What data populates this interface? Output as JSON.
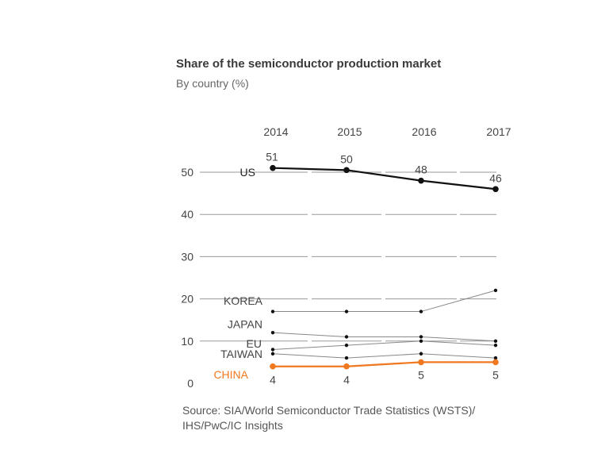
{
  "title": "Share of the semiconductor production market",
  "subtitle": "By country (%)",
  "source": "Source: SIA/World Semiconductor Trade Statistics (WSTS)/ IHS/PwC/IC Insights",
  "colors": {
    "us": "#111111",
    "china": "#f07820",
    "other": "#888888",
    "grid": "#9a9a9a",
    "text": "#444444"
  },
  "chart_data": {
    "type": "line",
    "x": [
      "2014",
      "2015",
      "2016",
      "2017"
    ],
    "ylim": [
      0,
      50
    ],
    "yticks": [
      "0",
      "10",
      "20",
      "30",
      "40",
      "50"
    ],
    "series": [
      {
        "name": "US",
        "key": "us",
        "values": [
          51,
          50.5,
          48,
          46
        ],
        "labels": [
          "51",
          "50",
          "48",
          "46"
        ]
      },
      {
        "name": "KOREA",
        "key": "other",
        "values": [
          17,
          17,
          17,
          22
        ]
      },
      {
        "name": "JAPAN",
        "key": "other",
        "values": [
          12,
          11,
          11,
          10
        ]
      },
      {
        "name": "EU",
        "key": "other",
        "values": [
          8,
          9,
          10,
          9
        ]
      },
      {
        "name": "TAIWAN",
        "key": "other",
        "values": [
          7,
          6,
          7,
          6
        ]
      },
      {
        "name": "CHINA",
        "key": "china",
        "values": [
          4,
          4,
          5,
          5
        ],
        "labels": [
          "4",
          "4",
          "5",
          "5"
        ]
      }
    ]
  }
}
